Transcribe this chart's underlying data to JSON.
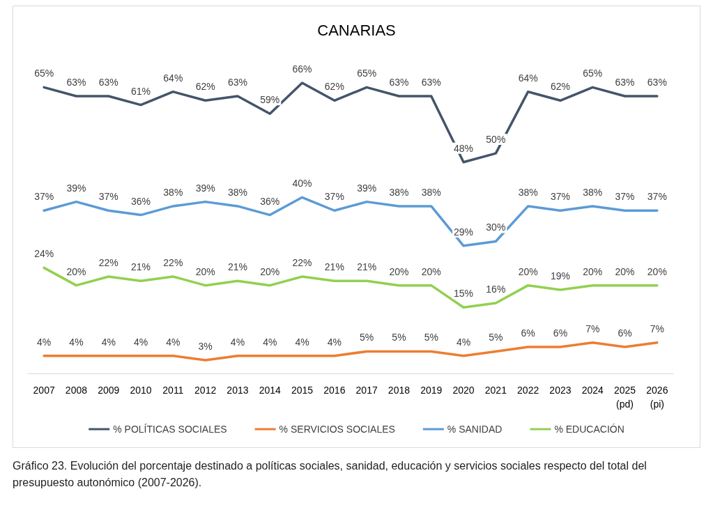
{
  "chart_data": {
    "type": "line",
    "title": "CANARIAS",
    "categories": [
      "2007",
      "2008",
      "2009",
      "2010",
      "2011",
      "2012",
      "2013",
      "2014",
      "2015",
      "2016",
      "2017",
      "2018",
      "2019",
      "2020",
      "2021",
      "2022",
      "2023",
      "2024",
      "2025\n(pd)",
      "2026\n(pi)"
    ],
    "series": [
      {
        "name": "% POLÍTICAS SOCIALES",
        "color": "#44546a",
        "values": [
          65,
          63,
          63,
          61,
          64,
          62,
          63,
          59,
          66,
          62,
          65,
          63,
          63,
          48,
          50,
          64,
          62,
          65,
          63,
          63
        ],
        "value_labels": [
          "65%",
          "63%",
          "63%",
          "61%",
          "64%",
          "62%",
          "63%",
          "59%",
          "66%",
          "62%",
          "65%",
          "63%",
          "63%",
          "48%",
          "50%",
          "64%",
          "62%",
          "65%",
          "63%",
          "63%"
        ]
      },
      {
        "name": "% SERVICIOS SOCIALES",
        "color": "#ed7d31",
        "values": [
          4,
          4,
          4,
          4,
          4,
          3,
          4,
          4,
          4,
          4,
          5,
          5,
          5,
          4,
          5,
          6,
          6,
          7,
          6,
          7
        ],
        "value_labels": [
          "4%",
          "4%",
          "4%",
          "4%",
          "4%",
          "3%",
          "4%",
          "4%",
          "4%",
          "4%",
          "5%",
          "5%",
          "5%",
          "4%",
          "5%",
          "6%",
          "6%",
          "7%",
          "6%",
          "7%"
        ]
      },
      {
        "name": "% SANIDAD",
        "color": "#5b9bd5",
        "values": [
          37,
          39,
          37,
          36,
          38,
          39,
          38,
          36,
          40,
          37,
          39,
          38,
          38,
          29,
          30,
          38,
          37,
          38,
          37,
          37
        ],
        "value_labels": [
          "37%",
          "39%",
          "37%",
          "36%",
          "38%",
          "39%",
          "38%",
          "36%",
          "40%",
          "37%",
          "39%",
          "38%",
          "38%",
          "29%",
          "30%",
          "38%",
          "37%",
          "38%",
          "37%",
          "37%"
        ]
      },
      {
        "name": "% EDUCACIÓN",
        "color": "#92d050",
        "values": [
          24,
          20,
          22,
          21,
          22,
          20,
          21,
          20,
          22,
          21,
          21,
          20,
          20,
          15,
          16,
          20,
          19,
          20,
          20,
          20
        ],
        "value_labels": [
          "24%",
          "20%",
          "22%",
          "21%",
          "22%",
          "20%",
          "21%",
          "20%",
          "22%",
          "21%",
          "21%",
          "20%",
          "20%",
          "15%",
          "16%",
          "20%",
          "19%",
          "20%",
          "20%",
          "20%"
        ]
      }
    ],
    "legend": "bottom",
    "grid": false,
    "marker": "none",
    "line_style": "solid",
    "annotations": [
      "Gráfico 23. Evolución del porcentaje destinado a políticas sociales, sanidad, educación y servicios sociales respecto del total del presupuesto autonómico (2007-2026)."
    ]
  }
}
